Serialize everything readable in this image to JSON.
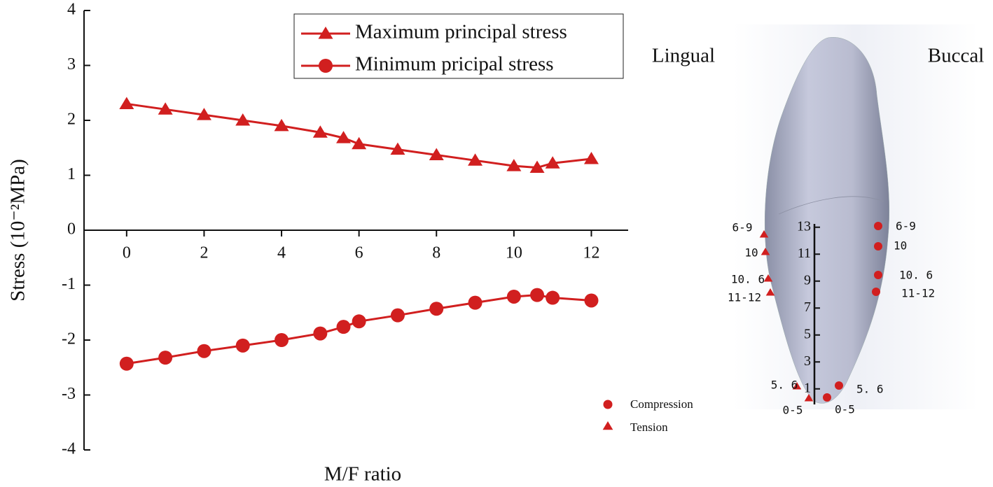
{
  "chart_data": {
    "type": "line",
    "ylabel": "Stress (10⁻²MPa)",
    "xlabel": "M/F ratio",
    "xlim": [
      -1.1,
      12.95
    ],
    "xticks": [
      0,
      2,
      4,
      6,
      8,
      10,
      12
    ],
    "ylim": [
      -4,
      4
    ],
    "yticks": [
      -4,
      -3,
      -2,
      -1,
      0,
      1,
      2,
      3,
      4
    ],
    "x": [
      0,
      1,
      2,
      3,
      4,
      5,
      5.6,
      6,
      7,
      8,
      9,
      10,
      10.6,
      11,
      12
    ],
    "series": [
      {
        "name": "Maximum principal stress",
        "color": "#d11f1f",
        "marker": "triangle",
        "values": [
          2.3,
          2.2,
          2.1,
          2.0,
          1.9,
          1.78,
          1.68,
          1.57,
          1.47,
          1.37,
          1.27,
          1.17,
          1.14,
          1.22,
          1.3
        ]
      },
      {
        "name": "Minimum pricipal stress",
        "color": "#d11f1f",
        "marker": "circle",
        "values": [
          -2.43,
          -2.32,
          -2.2,
          -2.1,
          -2.0,
          -1.88,
          -1.76,
          -1.66,
          -1.55,
          -1.43,
          -1.32,
          -1.21,
          -1.18,
          -1.23,
          -1.28
        ]
      }
    ]
  },
  "diagram": {
    "left_label": "Lingual",
    "right_label": "Buccal",
    "scale_ticks": [
      1,
      3,
      5,
      7,
      9,
      11,
      13
    ],
    "lingual_points": [
      "6-9",
      "10",
      "10. 6",
      "11-12",
      "5. 6",
      "0-5"
    ],
    "buccal_points": [
      "6-9",
      "10",
      "10. 6",
      "11-12",
      "5. 6",
      "0-5"
    ],
    "legend": [
      "Compression",
      "Tension"
    ]
  }
}
